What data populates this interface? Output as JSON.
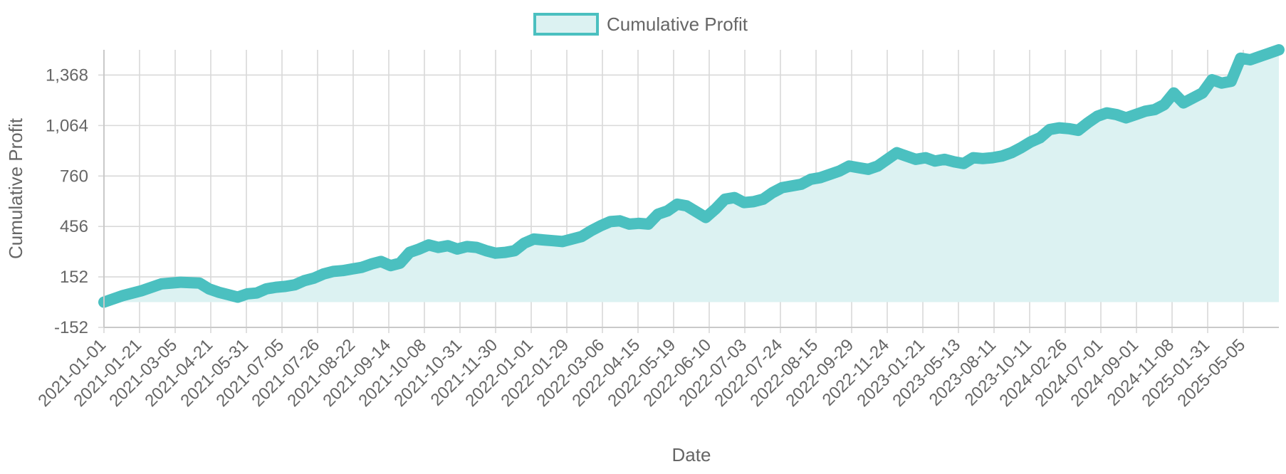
{
  "chart_data": {
    "type": "area",
    "xlabel": "Date",
    "ylabel": "Cumulative Profit",
    "legend_position": "top-center",
    "grid": true,
    "ylim": [
      -152,
      1520
    ],
    "yticks": [
      "-152",
      "152",
      "456",
      "760",
      "1,064",
      "1,368"
    ],
    "ytick_values": [
      -152,
      152,
      456,
      760,
      1064,
      1368
    ],
    "xtick_labels": [
      "2021-01-01",
      "2021-01-21",
      "2021-03-05",
      "2021-04-21",
      "2021-05-31",
      "2021-07-05",
      "2021-07-26",
      "2021-08-22",
      "2021-09-14",
      "2021-10-08",
      "2021-10-31",
      "2021-11-30",
      "2022-01-01",
      "2022-01-29",
      "2022-03-06",
      "2022-04-15",
      "2022-05-19",
      "2022-06-10",
      "2022-07-03",
      "2022-07-24",
      "2022-08-15",
      "2022-09-29",
      "2022-11-24",
      "2023-01-21",
      "2023-05-13",
      "2023-08-11",
      "2023-10-11",
      "2024-02-26",
      "2024-07-01",
      "2024-09-01",
      "2024-11-08",
      "2025-01-31",
      "2025-05-05"
    ],
    "colors": {
      "line": "#4bc0c0",
      "fill": "#dcf2f2"
    },
    "series": [
      {
        "name": "Cumulative Profit",
        "points": [
          [
            0,
            0
          ],
          [
            2,
            40
          ],
          [
            4,
            70
          ],
          [
            6,
            110
          ],
          [
            8,
            120
          ],
          [
            10,
            115
          ],
          [
            11,
            80
          ],
          [
            12,
            60
          ],
          [
            13,
            45
          ],
          [
            14,
            30
          ],
          [
            15,
            50
          ],
          [
            16,
            55
          ],
          [
            17,
            80
          ],
          [
            18,
            90
          ],
          [
            19,
            95
          ],
          [
            20,
            105
          ],
          [
            21,
            130
          ],
          [
            22,
            145
          ],
          [
            23,
            170
          ],
          [
            24,
            185
          ],
          [
            25,
            190
          ],
          [
            26,
            200
          ],
          [
            27,
            210
          ],
          [
            28,
            230
          ],
          [
            29,
            245
          ],
          [
            30,
            220
          ],
          [
            31,
            235
          ],
          [
            32,
            300
          ],
          [
            33,
            320
          ],
          [
            34,
            345
          ],
          [
            35,
            330
          ],
          [
            36,
            340
          ],
          [
            37,
            320
          ],
          [
            38,
            335
          ],
          [
            39,
            330
          ],
          [
            40,
            310
          ],
          [
            41,
            295
          ],
          [
            42,
            300
          ],
          [
            43,
            310
          ],
          [
            44,
            355
          ],
          [
            45,
            380
          ],
          [
            46,
            375
          ],
          [
            47,
            370
          ],
          [
            48,
            365
          ],
          [
            49,
            380
          ],
          [
            50,
            395
          ],
          [
            51,
            430
          ],
          [
            52,
            460
          ],
          [
            53,
            485
          ],
          [
            54,
            490
          ],
          [
            55,
            470
          ],
          [
            56,
            475
          ],
          [
            57,
            470
          ],
          [
            58,
            530
          ],
          [
            59,
            550
          ],
          [
            60,
            590
          ],
          [
            61,
            580
          ],
          [
            62,
            545
          ],
          [
            63,
            510
          ],
          [
            64,
            560
          ],
          [
            65,
            620
          ],
          [
            66,
            630
          ],
          [
            67,
            600
          ],
          [
            68,
            605
          ],
          [
            69,
            620
          ],
          [
            70,
            660
          ],
          [
            71,
            690
          ],
          [
            72,
            700
          ],
          [
            73,
            710
          ],
          [
            74,
            740
          ],
          [
            75,
            750
          ],
          [
            76,
            770
          ],
          [
            77,
            790
          ],
          [
            78,
            820
          ],
          [
            79,
            810
          ],
          [
            80,
            800
          ],
          [
            81,
            820
          ],
          [
            82,
            860
          ],
          [
            83,
            900
          ],
          [
            84,
            880
          ],
          [
            85,
            860
          ],
          [
            86,
            870
          ],
          [
            87,
            850
          ],
          [
            88,
            860
          ],
          [
            89,
            845
          ],
          [
            90,
            835
          ],
          [
            91,
            870
          ],
          [
            92,
            865
          ],
          [
            93,
            870
          ],
          [
            94,
            880
          ],
          [
            95,
            900
          ],
          [
            96,
            930
          ],
          [
            97,
            965
          ],
          [
            98,
            990
          ],
          [
            99,
            1040
          ],
          [
            100,
            1050
          ],
          [
            101,
            1045
          ],
          [
            102,
            1035
          ],
          [
            103,
            1080
          ],
          [
            104,
            1120
          ],
          [
            105,
            1140
          ],
          [
            106,
            1130
          ],
          [
            107,
            1110
          ],
          [
            108,
            1130
          ],
          [
            109,
            1150
          ],
          [
            110,
            1160
          ],
          [
            111,
            1190
          ],
          [
            112,
            1260
          ],
          [
            113,
            1200
          ],
          [
            114,
            1230
          ],
          [
            115,
            1260
          ],
          [
            116,
            1340
          ],
          [
            117,
            1320
          ],
          [
            118,
            1330
          ],
          [
            119,
            1470
          ],
          [
            120,
            1460
          ],
          [
            121,
            1480
          ],
          [
            122,
            1500
          ],
          [
            123,
            1520
          ]
        ]
      }
    ]
  }
}
